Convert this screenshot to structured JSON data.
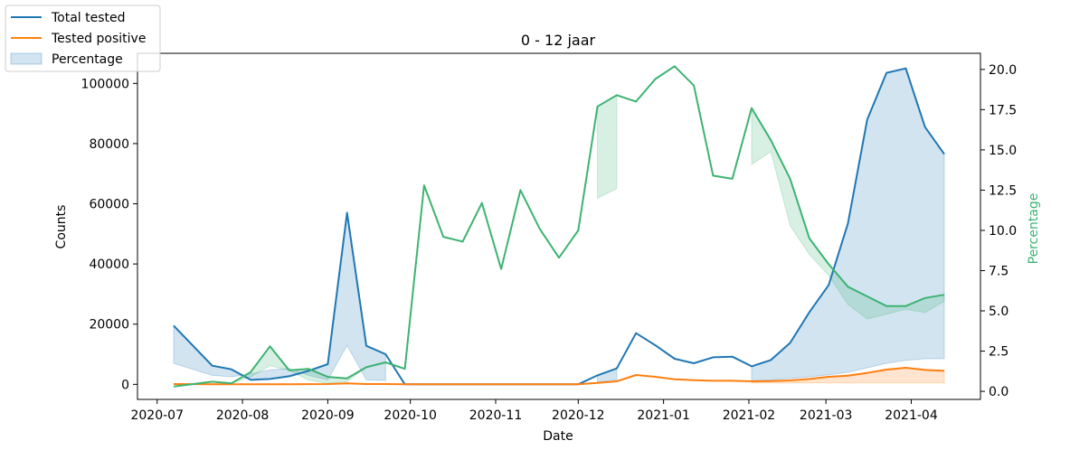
{
  "chart_data": {
    "type": "line",
    "title": "0 - 12 jaar",
    "xlabel": "Date",
    "ylabel": "Counts",
    "y2label": "Percentage",
    "x_ticks": [
      "2020-07",
      "2020-08",
      "2020-09",
      "2020-10",
      "2020-11",
      "2020-12",
      "2021-01",
      "2021-02",
      "2021-03",
      "2021-04"
    ],
    "y_ticks": [
      "0",
      "20000",
      "40000",
      "60000",
      "80000",
      "100000"
    ],
    "y2_ticks": [
      "0.0",
      "2.5",
      "5.0",
      "7.5",
      "10.0",
      "12.5",
      "15.0",
      "17.5",
      "20.0"
    ],
    "ylim": [
      -5000,
      110000
    ],
    "y2lim": [
      -0.5,
      21.0
    ],
    "legend_position": "upper-left, outside plot",
    "legend": [
      "Total tested",
      "Tested positive",
      "Percentage"
    ],
    "colors": {
      "total": "#1f77b4",
      "positive": "#ff7f0e",
      "percentage": "#3cb371"
    },
    "series": [
      {
        "name": "Total tested",
        "axis": "left",
        "points": [
          [
            "2020-07-07",
            19500
          ],
          [
            "2020-07-21",
            6200
          ],
          [
            "2020-07-28",
            5000
          ],
          [
            "2020-08-04",
            1500
          ],
          [
            "2020-08-11",
            1800
          ],
          [
            "2020-08-18",
            2700
          ],
          [
            "2020-08-25",
            4500
          ],
          [
            "2020-09-01",
            6700
          ],
          [
            "2020-09-08",
            57000
          ],
          [
            "2020-09-15",
            12800
          ],
          [
            "2020-09-22",
            10000
          ],
          [
            "2020-09-29",
            0
          ],
          [
            "2020-10-06",
            0
          ],
          [
            "2020-10-13",
            0
          ],
          [
            "2020-10-20",
            0
          ],
          [
            "2020-10-27",
            0
          ],
          [
            "2020-11-03",
            0
          ],
          [
            "2020-11-10",
            0
          ],
          [
            "2020-11-17",
            0
          ],
          [
            "2020-11-24",
            0
          ],
          [
            "2020-12-01",
            0
          ],
          [
            "2020-12-08",
            3000
          ],
          [
            "2020-12-15",
            5300
          ],
          [
            "2020-12-22",
            17000
          ],
          [
            "2020-12-29",
            13000
          ],
          [
            "2021-01-05",
            8500
          ],
          [
            "2021-01-12",
            7000
          ],
          [
            "2021-01-19",
            9000
          ],
          [
            "2021-01-26",
            9200
          ],
          [
            "2021-02-02",
            6000
          ],
          [
            "2021-02-09",
            8100
          ],
          [
            "2021-02-16",
            13800
          ],
          [
            "2021-02-23",
            24000
          ],
          [
            "2021-03-02",
            33000
          ],
          [
            "2021-03-09",
            53500
          ],
          [
            "2021-03-16",
            88000
          ],
          [
            "2021-03-23",
            103500
          ],
          [
            "2021-03-30",
            105000
          ],
          [
            "2021-04-06",
            85500
          ],
          [
            "2021-04-13",
            76500
          ]
        ]
      },
      {
        "name": "Tested positive",
        "axis": "left",
        "points": [
          [
            "2020-07-07",
            100
          ],
          [
            "2020-07-21",
            50
          ],
          [
            "2020-07-28",
            50
          ],
          [
            "2020-08-04",
            20
          ],
          [
            "2020-08-11",
            30
          ],
          [
            "2020-08-18",
            50
          ],
          [
            "2020-08-25",
            60
          ],
          [
            "2020-09-01",
            100
          ],
          [
            "2020-09-08",
            300
          ],
          [
            "2020-09-15",
            100
          ],
          [
            "2020-09-22",
            100
          ],
          [
            "2020-09-29",
            0
          ],
          [
            "2020-10-06",
            0
          ],
          [
            "2020-10-13",
            0
          ],
          [
            "2020-10-20",
            0
          ],
          [
            "2020-10-27",
            0
          ],
          [
            "2020-11-03",
            0
          ],
          [
            "2020-11-10",
            0
          ],
          [
            "2020-11-17",
            0
          ],
          [
            "2020-11-24",
            0
          ],
          [
            "2020-12-01",
            0
          ],
          [
            "2020-12-08",
            500
          ],
          [
            "2020-12-15",
            1000
          ],
          [
            "2020-12-22",
            3100
          ],
          [
            "2020-12-29",
            2500
          ],
          [
            "2021-01-05",
            1700
          ],
          [
            "2021-01-12",
            1400
          ],
          [
            "2021-01-19",
            1200
          ],
          [
            "2021-01-26",
            1200
          ],
          [
            "2021-02-02",
            1000
          ],
          [
            "2021-02-09",
            1100
          ],
          [
            "2021-02-16",
            1300
          ],
          [
            "2021-02-23",
            1800
          ],
          [
            "2021-03-02",
            2500
          ],
          [
            "2021-03-09",
            2900
          ],
          [
            "2021-03-16",
            3800
          ],
          [
            "2021-03-23",
            4900
          ],
          [
            "2021-03-30",
            5500
          ],
          [
            "2021-04-06",
            4800
          ],
          [
            "2021-04-13",
            4500
          ]
        ]
      },
      {
        "name": "Percentage",
        "axis": "right",
        "points": [
          [
            "2020-07-07",
            0.3
          ],
          [
            "2020-07-21",
            0.6
          ],
          [
            "2020-07-28",
            0.5
          ],
          [
            "2020-08-04",
            1.2
          ],
          [
            "2020-08-11",
            2.8
          ],
          [
            "2020-08-18",
            1.3
          ],
          [
            "2020-08-25",
            1.4
          ],
          [
            "2020-09-01",
            0.9
          ],
          [
            "2020-09-08",
            0.8
          ],
          [
            "2020-09-15",
            1.5
          ],
          [
            "2020-09-22",
            1.8
          ],
          [
            "2020-09-29",
            1.4
          ],
          [
            "2020-10-06",
            12.8
          ],
          [
            "2020-10-13",
            9.6
          ],
          [
            "2020-10-20",
            9.3
          ],
          [
            "2020-10-27",
            11.7
          ],
          [
            "2020-11-03",
            7.6
          ],
          [
            "2020-11-10",
            12.5
          ],
          [
            "2020-11-17",
            10.1
          ],
          [
            "2020-11-24",
            8.3
          ],
          [
            "2020-12-01",
            10.0
          ],
          [
            "2020-12-08",
            17.7
          ],
          [
            "2020-12-15",
            18.4
          ],
          [
            "2020-12-22",
            18.0
          ],
          [
            "2020-12-29",
            19.4
          ],
          [
            "2021-01-05",
            20.2
          ],
          [
            "2021-01-12",
            19.0
          ],
          [
            "2021-01-19",
            13.4
          ],
          [
            "2021-01-26",
            13.2
          ],
          [
            "2021-02-02",
            17.6
          ],
          [
            "2021-02-09",
            15.6
          ],
          [
            "2021-02-16",
            13.2
          ],
          [
            "2021-02-23",
            9.5
          ],
          [
            "2021-03-02",
            7.9
          ],
          [
            "2021-03-09",
            6.5
          ],
          [
            "2021-03-16",
            5.9
          ],
          [
            "2021-03-23",
            5.3
          ],
          [
            "2021-03-30",
            5.3
          ],
          [
            "2021-04-06",
            5.8
          ],
          [
            "2021-04-13",
            6.0
          ]
        ]
      }
    ],
    "bands": [
      {
        "name": "Total tested band",
        "axis": "left",
        "segments": [
          [
            [
              "2020-07-07",
              7000,
              19500
            ],
            [
              "2020-07-21",
              3000,
              6200
            ],
            [
              "2020-07-28",
              2500,
              5000
            ],
            [
              "2020-08-04",
              3500,
              1500
            ],
            [
              "2020-08-11",
              4800,
              1800
            ],
            [
              "2020-08-18",
              5300,
              2700
            ],
            [
              "2020-08-25",
              3000,
              4500
            ],
            [
              "2020-09-01",
              1500,
              6700
            ],
            [
              "2020-09-08",
              13000,
              57000
            ],
            [
              "2020-09-15",
              1500,
              12800
            ],
            [
              "2020-09-22",
              1300,
              10000
            ]
          ],
          [
            [
              "2020-12-08",
              800,
              3000
            ],
            [
              "2020-12-15",
              1500,
              5300
            ]
          ],
          [
            [
              "2021-02-02",
              1200,
              6000
            ],
            [
              "2021-02-09",
              1500,
              8100
            ],
            [
              "2021-02-16",
              2000,
              13800
            ],
            [
              "2021-02-23",
              2500,
              24000
            ],
            [
              "2021-03-02",
              3200,
              33000
            ],
            [
              "2021-03-09",
              4000,
              53500
            ],
            [
              "2021-03-16",
              5500,
              88000
            ],
            [
              "2021-03-23",
              7000,
              103500
            ],
            [
              "2021-03-30",
              8000,
              105000
            ],
            [
              "2021-04-06",
              8500,
              85500
            ],
            [
              "2021-04-13",
              8500,
              76500
            ]
          ]
        ]
      },
      {
        "name": "Tested positive band",
        "axis": "left",
        "segments": [
          [
            [
              "2021-02-02",
              500,
              1000
            ],
            [
              "2021-02-16",
              500,
              1300
            ],
            [
              "2021-03-02",
              500,
              2500
            ],
            [
              "2021-03-16",
              500,
              3800
            ],
            [
              "2021-03-30",
              500,
              5500
            ],
            [
              "2021-04-13",
              500,
              4500
            ]
          ]
        ]
      },
      {
        "name": "Percentage band",
        "axis": "right",
        "segments": [
          [
            [
              "2020-07-07",
              0.3,
              0.3
            ],
            [
              "2020-07-21",
              0.6,
              0.6
            ],
            [
              "2020-07-28",
              0.5,
              0.5
            ],
            [
              "2020-08-04",
              0.9,
              1.2
            ],
            [
              "2020-08-11",
              1.6,
              2.8
            ],
            [
              "2020-08-18",
              1.3,
              1.3
            ],
            [
              "2020-08-25",
              0.7,
              1.4
            ],
            [
              "2020-09-01",
              0.5,
              0.9
            ],
            [
              "2020-09-08",
              0.6,
              0.8
            ],
            [
              "2020-09-15",
              1.5,
              1.5
            ],
            [
              "2020-09-22",
              1.8,
              1.8
            ]
          ],
          [
            [
              "2020-12-08",
              12.0,
              17.7
            ],
            [
              "2020-12-15",
              12.6,
              18.4
            ]
          ],
          [
            [
              "2021-02-02",
              14.1,
              17.6
            ],
            [
              "2021-02-09",
              14.9,
              15.6
            ],
            [
              "2021-02-16",
              10.3,
              13.2
            ],
            [
              "2021-02-23",
              8.5,
              9.5
            ],
            [
              "2021-03-02",
              7.2,
              7.9
            ],
            [
              "2021-03-09",
              5.4,
              6.5
            ],
            [
              "2021-03-16",
              4.5,
              5.9
            ],
            [
              "2021-03-23",
              4.8,
              5.3
            ],
            [
              "2021-03-30",
              5.1,
              5.3
            ],
            [
              "2021-04-06",
              4.9,
              5.8
            ],
            [
              "2021-04-13",
              5.6,
              6.0
            ]
          ]
        ]
      }
    ]
  }
}
